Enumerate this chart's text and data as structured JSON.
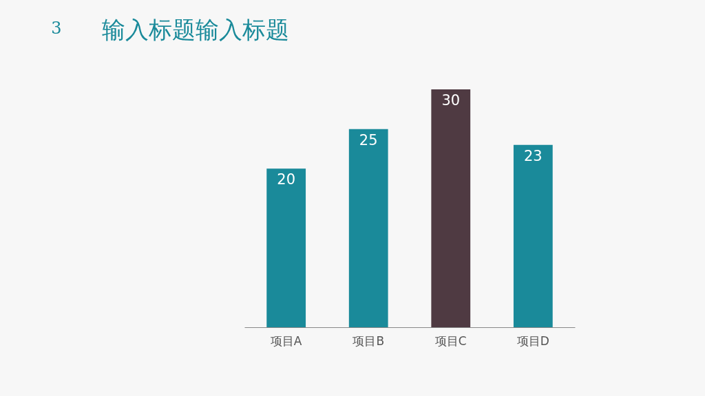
{
  "chart_data": {
    "type": "bar",
    "title": "输入标题输入标题",
    "annotations": [
      "3"
    ],
    "categories": [
      "项目A",
      "项目B",
      "项目C",
      "项目D"
    ],
    "values": [
      20,
      25,
      30,
      23
    ],
    "colors": [
      "#1a8a9a",
      "#1a8a9a",
      "#4f3a42",
      "#1a8a9a"
    ],
    "data_labels": true,
    "grid": false
  }
}
